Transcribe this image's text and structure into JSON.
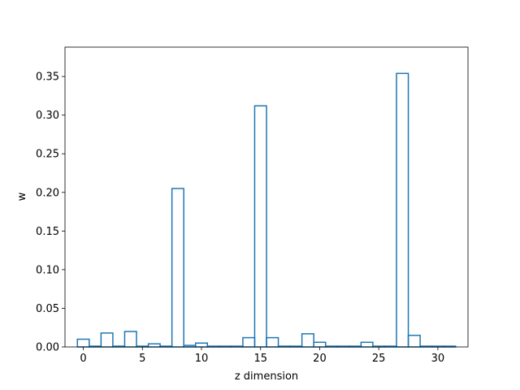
{
  "chart_data": {
    "type": "bar",
    "style": "step-histogram",
    "xlabel": "z dimension",
    "ylabel": "w",
    "x": [
      0,
      1,
      2,
      3,
      4,
      5,
      6,
      7,
      8,
      9,
      10,
      11,
      12,
      13,
      14,
      15,
      16,
      17,
      18,
      19,
      20,
      21,
      22,
      23,
      24,
      25,
      26,
      27,
      28,
      29,
      30,
      31
    ],
    "values": [
      0.01,
      0.001,
      0.018,
      0.001,
      0.02,
      0.001,
      0.004,
      0.001,
      0.205,
      0.002,
      0.005,
      0.001,
      0.001,
      0.001,
      0.012,
      0.312,
      0.012,
      0.001,
      0.001,
      0.017,
      0.006,
      0.001,
      0.001,
      0.001,
      0.006,
      0.001,
      0.001,
      0.354,
      0.015,
      0.001,
      0.001,
      0.001
    ],
    "xlim": [
      -1.55,
      32.55
    ],
    "ylim": [
      0,
      0.388
    ],
    "xticks": [
      0,
      5,
      10,
      15,
      20,
      25,
      30
    ],
    "xtick_labels": [
      "0",
      "5",
      "10",
      "15",
      "20",
      "25",
      "30"
    ],
    "yticks": [
      0.0,
      0.05,
      0.1,
      0.15,
      0.2,
      0.25,
      0.3,
      0.35
    ],
    "ytick_labels": [
      "0.00",
      "0.05",
      "0.10",
      "0.15",
      "0.20",
      "0.25",
      "0.30",
      "0.35"
    ],
    "line_color": "#1f77b4",
    "grid": false,
    "legend": false
  }
}
